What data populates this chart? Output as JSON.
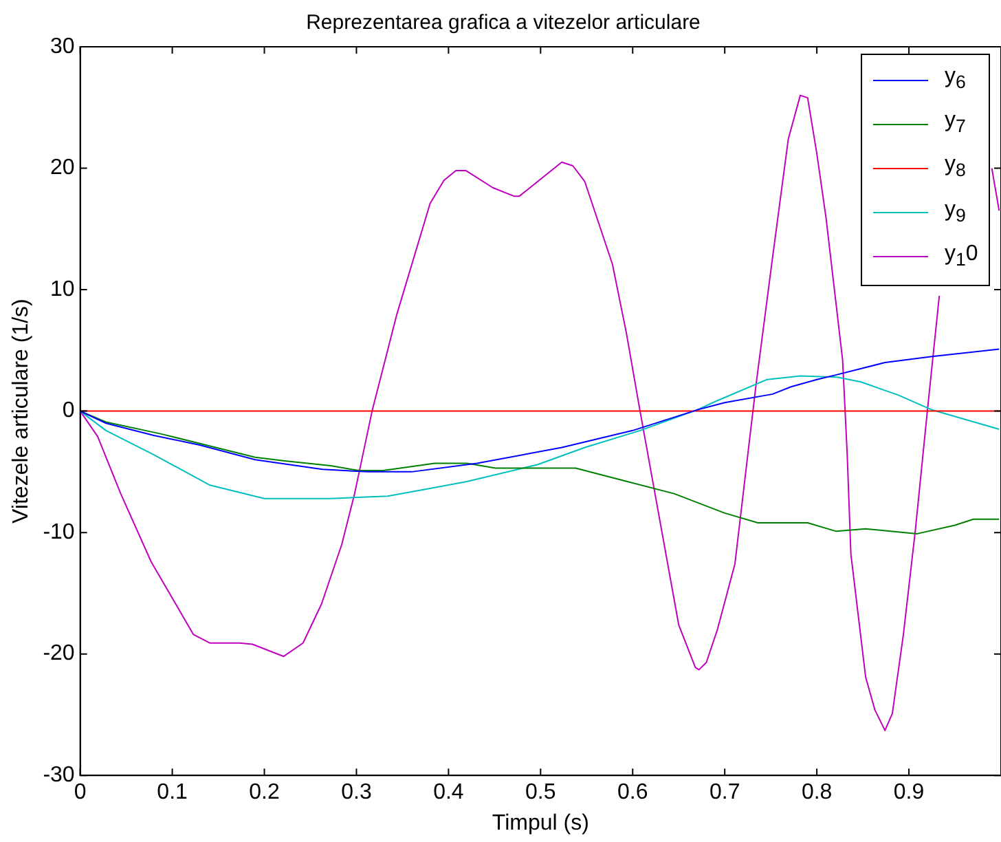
{
  "chart_data": {
    "type": "line",
    "title": "Reprezentarea grafica a vitezelor articulare",
    "xlabel": "Timpul (s)",
    "ylabel": "Vitezele articulare (1/s)",
    "xlim": [
      0,
      1
    ],
    "xticks": [
      0,
      0.1,
      0.2,
      0.3,
      0.4,
      0.5,
      0.6,
      0.7,
      0.8,
      0.9
    ],
    "ylim": [
      -30,
      30
    ],
    "yticks": [
      -30,
      -20,
      -10,
      0,
      10,
      20,
      30
    ],
    "grid": false,
    "legend": "top right",
    "marker": "none",
    "line_style": "solid",
    "series": [
      {
        "name": "y$_{6}$",
        "color": "#0000ff",
        "x": [
          0,
          0.028,
          0.08,
          0.13,
          0.19,
          0.263,
          0.313,
          0.344,
          0.36,
          0.431,
          0.523,
          0.6,
          0.67,
          0.7,
          0.752,
          0.772,
          0.8,
          0.822,
          0.874,
          0.925,
          0.998
        ],
        "values": [
          0,
          -1.0,
          -2.0,
          -2.8,
          -4.0,
          -4.8,
          -5.0,
          -5.0,
          -5.0,
          -4.3,
          -3.0,
          -1.6,
          0.1,
          0.7,
          1.4,
          2.0,
          2.6,
          3.0,
          4.0,
          4.5,
          5.1
        ]
      },
      {
        "name": "y$_{7}$",
        "color": "#008000",
        "x": [
          0,
          0.028,
          0.089,
          0.19,
          0.222,
          0.272,
          0.303,
          0.329,
          0.385,
          0.42,
          0.451,
          0.538,
          0.589,
          0.645,
          0.7,
          0.736,
          0.79,
          0.821,
          0.853,
          0.909,
          0.95,
          0.97,
          0.998
        ],
        "values": [
          0,
          -0.9,
          -1.9,
          -3.8,
          -4.1,
          -4.5,
          -4.9,
          -4.9,
          -4.3,
          -4.3,
          -4.7,
          -4.7,
          -5.7,
          -6.8,
          -8.4,
          -9.2,
          -9.2,
          -9.9,
          -9.7,
          -10.1,
          -9.4,
          -8.9,
          -8.9
        ]
      },
      {
        "name": "y$_{8}$",
        "color": "#ff0000",
        "x": [
          0,
          1
        ],
        "values": [
          0,
          0
        ]
      },
      {
        "name": "y$_{9}$",
        "color": "#00bfbf",
        "x": [
          0,
          0.028,
          0.08,
          0.141,
          0.2,
          0.272,
          0.334,
          0.385,
          0.42,
          0.497,
          0.548,
          0.608,
          0.67,
          0.69,
          0.746,
          0.782,
          0.822,
          0.848,
          0.889,
          0.925,
          0.998
        ],
        "values": [
          0,
          -1.6,
          -3.6,
          -6.1,
          -7.2,
          -7.2,
          -7.0,
          -6.3,
          -5.8,
          -4.4,
          -3.0,
          -1.6,
          0.1,
          0.8,
          2.6,
          2.9,
          2.8,
          2.4,
          1.3,
          0.1,
          -1.5
        ]
      },
      {
        "name": "y$_{1}$0",
        "color": "#bf00bf",
        "x": [
          0,
          0.019,
          0.044,
          0.077,
          0.123,
          0.141,
          0.173,
          0.187,
          0.221,
          0.242,
          0.262,
          0.284,
          0.298,
          0.317,
          0.344,
          0.38,
          0.395,
          0.408,
          0.419,
          0.448,
          0.471,
          0.477,
          0.523,
          0.535,
          0.548,
          0.578,
          0.593,
          0.608,
          0.65,
          0.668,
          0.672,
          0.68,
          0.692,
          0.711,
          0.734,
          0.752,
          0.769,
          0.782,
          0.79,
          0.8,
          0.81,
          0.828,
          0.833,
          0.837,
          0.853,
          0.863,
          0.874,
          0.882,
          0.894,
          0.907,
          0.92,
          0.933,
          0.943,
          0.96,
          0.99,
          0.998
        ],
        "values": [
          0,
          -2.1,
          -6.8,
          -12.4,
          -18.4,
          -19.1,
          -19.1,
          -19.2,
          -20.2,
          -19.1,
          -15.9,
          -11.0,
          -6.8,
          0,
          8.0,
          17.1,
          19.0,
          19.8,
          19.8,
          18.4,
          17.7,
          17.7,
          20.5,
          20.2,
          18.9,
          12.1,
          6.5,
          0,
          -17.6,
          -21.1,
          -21.3,
          -20.7,
          -18.0,
          -12.6,
          2.2,
          12.7,
          22.4,
          26.0,
          25.8,
          21.2,
          15.9,
          4.2,
          -3.6,
          -11.8,
          -21.9,
          -24.6,
          -26.3,
          -24.9,
          -18.4,
          -9.8,
          0,
          9.5,
          null,
          null,
          20.0,
          16.5
        ]
      }
    ]
  }
}
